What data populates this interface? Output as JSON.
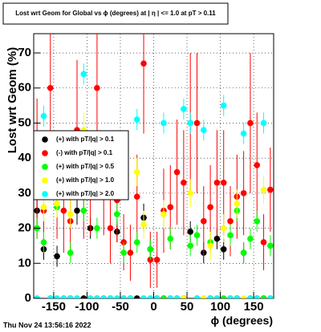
{
  "chart_data": {
    "type": "scatter",
    "title": "Lost wrt Geom for Global vs ϕ (degrees) at | η | <= 1.0 at pT > 0.11",
    "x_label": "ϕ (degrees)",
    "y_label": "Lost wrt Geom (%)",
    "timestamp": "Thu Nov 24 13:56:16 2022",
    "x": [
      -175,
      -165,
      -155,
      -145,
      -135,
      -125,
      -115,
      -105,
      -95,
      -85,
      -75,
      -65,
      -55,
      -45,
      -35,
      -25,
      -15,
      -5,
      5,
      15,
      25,
      35,
      45,
      55,
      65,
      75,
      85,
      95,
      105,
      115,
      125,
      135,
      145,
      155,
      165,
      175
    ],
    "xlim": [
      -180,
      180
    ],
    "ylim": [
      0,
      75.5
    ],
    "xticks": [
      -150,
      -100,
      -50,
      0,
      50,
      100,
      150
    ],
    "yticks": [
      0,
      10,
      20,
      30,
      40,
      50,
      60,
      70
    ],
    "grid": true,
    "series": [
      {
        "name": "(+) with pT/|q| > 0.1",
        "color": "#000000",
        "values": [
          25,
          14,
          0,
          12,
          0,
          0,
          25,
          0,
          20,
          0,
          0,
          0,
          19,
          0,
          0,
          0,
          23,
          14,
          0,
          0,
          0,
          0,
          0,
          19,
          0,
          13,
          0,
          17,
          14,
          0,
          0,
          13,
          0,
          0,
          0,
          0
        ],
        "errors": [
          4,
          3,
          0.5,
          3,
          0.5,
          0.5,
          4,
          0.5,
          3,
          0.5,
          0.5,
          0.5,
          3,
          0.5,
          0.5,
          0.5,
          4,
          3,
          0.5,
          0.5,
          0.5,
          0.5,
          0.5,
          3,
          0.5,
          3,
          0.5,
          3,
          3,
          0.5,
          0.5,
          3,
          0.5,
          0.5,
          0.5,
          0.5
        ]
      },
      {
        "name": "(-) with pT/|q| > 0.1",
        "color": "#ff0000",
        "values": [
          37,
          25,
          60,
          29,
          25,
          22,
          48,
          29,
          30,
          60,
          30,
          20,
          28,
          16,
          13,
          29,
          67,
          11,
          11,
          25,
          26,
          36,
          33,
          50,
          50,
          22,
          26,
          33,
          33,
          22,
          29,
          30,
          50,
          38,
          16,
          31
        ],
        "errors": [
          20,
          12,
          20,
          12,
          12,
          10,
          20,
          12,
          12,
          20,
          12,
          10,
          12,
          8,
          8,
          12,
          20,
          8,
          8,
          12,
          12,
          15,
          15,
          20,
          20,
          10,
          12,
          15,
          15,
          10,
          12,
          12,
          20,
          15,
          8,
          12
        ]
      },
      {
        "name": "(+) with pT/|q| > 0.5",
        "color": "#00ff00",
        "values": [
          20,
          16,
          0,
          26,
          0,
          13,
          0,
          25,
          0,
          20,
          0,
          0,
          24,
          13,
          0,
          16,
          0,
          14,
          0,
          0,
          17,
          0,
          0,
          15,
          18,
          0,
          16,
          0,
          0,
          18,
          25,
          13,
          17,
          22,
          0,
          15
        ],
        "errors": [
          3,
          3,
          0.5,
          3,
          0.5,
          3,
          0.5,
          3,
          0.5,
          3,
          0.5,
          0.5,
          3,
          3,
          0.5,
          3,
          0.5,
          3,
          0.5,
          0.5,
          3,
          0.5,
          0.5,
          3,
          3,
          0.5,
          3,
          0.5,
          0.5,
          3,
          3,
          3,
          3,
          3,
          0.5,
          3
        ]
      },
      {
        "name": "(+) with pT/|q| > 1.0",
        "color": "#ffff00",
        "values": [
          0,
          26,
          0,
          27,
          0,
          24,
          0,
          48,
          0,
          0,
          0,
          0,
          33,
          0,
          0,
          36,
          21,
          0,
          0,
          24,
          0,
          0,
          0,
          30,
          0,
          0,
          15,
          0,
          20,
          0,
          27,
          0,
          0,
          0,
          31,
          0
        ],
        "errors": [
          0.5,
          4,
          0.5,
          4,
          0.5,
          4,
          0.5,
          5,
          0.5,
          0.5,
          0.5,
          0.5,
          4,
          0.5,
          0.5,
          4,
          4,
          0.5,
          0.5,
          4,
          0.5,
          0.5,
          0.5,
          4,
          0.5,
          0.5,
          4,
          0.5,
          4,
          0.5,
          4,
          0.5,
          0.5,
          0.5,
          4,
          0.5
        ]
      },
      {
        "name": "(+) with pT/|q| > 2.0",
        "color": "#00ffff",
        "values": [
          0,
          52,
          0,
          0,
          0,
          0,
          0,
          64,
          0,
          0,
          0,
          0,
          0,
          0,
          0,
          51,
          0,
          0,
          0,
          50,
          0,
          0,
          54,
          50,
          0,
          48,
          0,
          0,
          55,
          0,
          0,
          47,
          0,
          0,
          50,
          0
        ],
        "errors": [
          0.5,
          3,
          0.5,
          0.5,
          0.5,
          0.5,
          0.5,
          3,
          0.5,
          0.5,
          0.5,
          0.5,
          0.5,
          0.5,
          0.5,
          3,
          0.5,
          0.5,
          0.5,
          3,
          0.5,
          0.5,
          3,
          3,
          0.5,
          3,
          0.5,
          0.5,
          3,
          0.5,
          0.5,
          3,
          0.5,
          0.5,
          3,
          0.5
        ]
      }
    ]
  }
}
